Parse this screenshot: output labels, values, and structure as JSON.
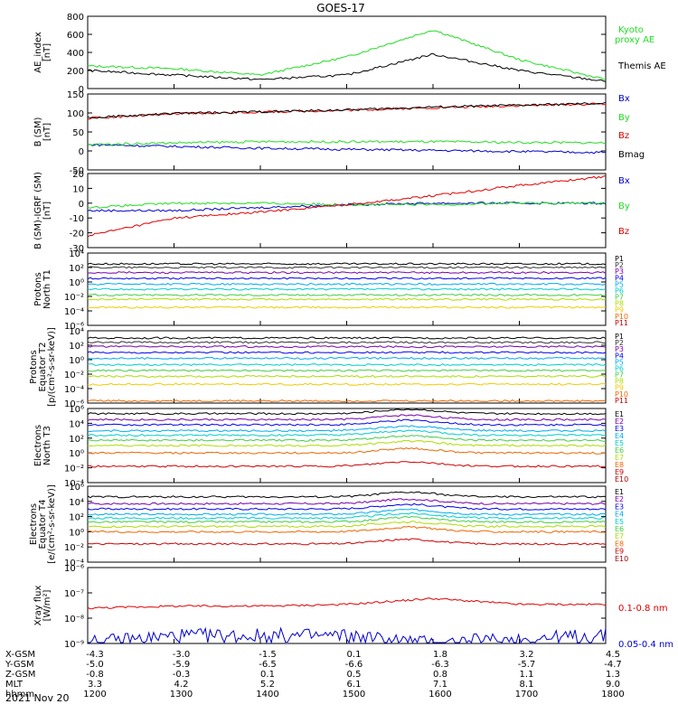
{
  "title": "GOES-17",
  "date_label": "2021 Nov 20",
  "colors": {
    "black": "#000000",
    "green": "#22dd22",
    "blue": "#0000cc",
    "red": "#dd0000",
    "p1": "#000000",
    "p2": "#333333",
    "p3": "#7700aa",
    "p4": "#0000ee",
    "p5": "#00aaee",
    "p6": "#00cccc",
    "p7": "#44cc44",
    "p8": "#aadd00",
    "p9": "#eecc00",
    "p10": "#ee6600",
    "p11": "#cc0000",
    "e9": "#cc0000",
    "e10": "#aa0000"
  },
  "ephemeris": {
    "row_labels": [
      "X-GSM",
      "Y-GSM",
      "Z-GSM",
      "MLT",
      "hhmm"
    ],
    "columns": [
      {
        "x": "-4.3",
        "y": "-5.0",
        "z": "-0.8",
        "mlt": "3.3",
        "hhmm": "1200"
      },
      {
        "x": "-3.0",
        "y": "-5.9",
        "z": "-0.3",
        "mlt": "4.2",
        "hhmm": "1300"
      },
      {
        "x": "-1.5",
        "y": "-6.5",
        "z": "0.1",
        "mlt": "5.2",
        "hhmm": "1400"
      },
      {
        "x": "0.1",
        "y": "-6.6",
        "z": "0.5",
        "mlt": "6.1",
        "hhmm": "1500"
      },
      {
        "x": "1.8",
        "y": "-6.3",
        "z": "0.8",
        "mlt": "7.1",
        "hhmm": "1600"
      },
      {
        "x": "3.2",
        "y": "-5.7",
        "z": "1.1",
        "mlt": "8.1",
        "hhmm": "1700"
      },
      {
        "x": "4.5",
        "y": "-4.7",
        "z": "1.3",
        "mlt": "9.0",
        "hhmm": "1800"
      }
    ]
  },
  "chart_data": [
    {
      "id": "ae",
      "type": "line",
      "ylabel": "AE_index\n[nT]",
      "ylim": [
        0,
        800
      ],
      "yticks": [
        "800",
        "600",
        "400",
        "200",
        "0"
      ],
      "x": [
        "1200",
        "1300",
        "1400",
        "1500",
        "1600",
        "1700",
        "1800"
      ],
      "series": [
        {
          "name": "Kyoto\nproxy AE",
          "color": "green",
          "values": [
            250,
            220,
            150,
            350,
            650,
            320,
            100
          ]
        },
        {
          "name": "Themis AE",
          "color": "black",
          "values": [
            200,
            150,
            100,
            150,
            380,
            200,
            80
          ]
        }
      ]
    },
    {
      "id": "bsm",
      "type": "line",
      "ylabel": "B (SM)\n[nT]",
      "ylim": [
        -60,
        150
      ],
      "yticks": [
        "150",
        "100",
        "50",
        "0",
        "-50"
      ],
      "x": [
        "1200",
        "1300",
        "1400",
        "1500",
        "1600",
        "1700",
        "1800"
      ],
      "series": [
        {
          "name": "Bx",
          "color": "blue",
          "values": [
            10,
            5,
            0,
            -3,
            -6,
            -9,
            -12
          ]
        },
        {
          "name": "By",
          "color": "green",
          "values": [
            10,
            15,
            18,
            18,
            18,
            16,
            15
          ]
        },
        {
          "name": "Bz",
          "color": "red",
          "values": [
            83,
            95,
            100,
            105,
            112,
            118,
            123
          ]
        },
        {
          "name": "Bmag",
          "color": "black",
          "values": [
            84,
            96,
            101,
            106,
            114,
            119,
            124
          ]
        }
      ]
    },
    {
      "id": "bigrf",
      "type": "line",
      "ylabel": "B (SM)-IGRF (SM)\n[nT]",
      "ylim": [
        -30,
        20
      ],
      "yticks": [
        "20",
        "10",
        "0",
        "-10",
        "-20",
        "-30"
      ],
      "x": [
        "1200",
        "1300",
        "1400",
        "1500",
        "1600",
        "1700",
        "1800"
      ],
      "series": [
        {
          "name": "Bx",
          "color": "blue",
          "values": [
            -5,
            -5,
            -3,
            -1,
            0,
            0,
            0
          ]
        },
        {
          "name": "By",
          "color": "green",
          "values": [
            -3,
            0,
            0,
            -1,
            -1,
            0,
            0
          ]
        },
        {
          "name": "Bz",
          "color": "red",
          "values": [
            -22,
            -10,
            -6,
            -1,
            5,
            12,
            18
          ]
        }
      ]
    },
    {
      "id": "pn",
      "type": "line",
      "scale": "log",
      "ylabel": "Protons\nNorth T1",
      "yticks": [
        "10⁴",
        "10²",
        "10⁰",
        "10⁻²",
        "10⁻⁴",
        "10⁻⁶"
      ],
      "x": [
        "1200",
        "1300",
        "1400",
        "1500",
        "1600",
        "1700",
        "1800"
      ],
      "series": [
        {
          "name": "P1",
          "color": "p1",
          "level": 2.5
        },
        {
          "name": "P2",
          "color": "p2",
          "level": 2.0
        },
        {
          "name": "P3",
          "color": "p3",
          "level": 1.3
        },
        {
          "name": "P4",
          "color": "p4",
          "level": 0.5
        },
        {
          "name": "P5",
          "color": "p5",
          "level": -0.3
        },
        {
          "name": "P6",
          "color": "p6",
          "level": -1.0
        },
        {
          "name": "P7",
          "color": "p7",
          "level": -1.8
        },
        {
          "name": "P8",
          "color": "p8",
          "level": -2.4
        },
        {
          "name": "P9",
          "color": "p9",
          "level": -3.5
        },
        {
          "name": "P10",
          "color": "p10"
        },
        {
          "name": "P11",
          "color": "p11"
        }
      ]
    },
    {
      "id": "pe",
      "type": "line",
      "scale": "log",
      "ylabel": "Protons\nEquator T2\n[p/(cm²-s-sr-keV)]",
      "yticks": [
        "10⁴",
        "10²",
        "10⁰",
        "10⁻²",
        "10⁻⁴",
        "10⁻⁶"
      ],
      "x": [
        "1200",
        "1300",
        "1400",
        "1500",
        "1600",
        "1700",
        "1800"
      ],
      "series": [
        {
          "name": "P1",
          "color": "p1",
          "level": 3.0
        },
        {
          "name": "P2",
          "color": "p2",
          "level": 2.4
        },
        {
          "name": "P3",
          "color": "p3",
          "level": 1.8
        },
        {
          "name": "P4",
          "color": "p4",
          "level": 1.0
        },
        {
          "name": "P5",
          "color": "p5",
          "level": 0.2
        },
        {
          "name": "P6",
          "color": "p6",
          "level": -0.7
        },
        {
          "name": "P7",
          "color": "p7",
          "level": -1.5
        },
        {
          "name": "P8",
          "color": "p8",
          "level": -2.3
        },
        {
          "name": "P9",
          "color": "p9",
          "level": -3.4
        },
        {
          "name": "P10",
          "color": "p10",
          "level": -5.7
        },
        {
          "name": "P11",
          "color": "p11"
        }
      ]
    },
    {
      "id": "en",
      "type": "line",
      "scale": "log",
      "ylabel": "Electrons\nNorth T3",
      "yticks": [
        "10⁶",
        "10⁴",
        "10²",
        "10⁰",
        "10⁻²",
        "10⁻⁴"
      ],
      "x": [
        "1200",
        "1300",
        "1400",
        "1500",
        "1600",
        "1700",
        "1800"
      ],
      "series": [
        {
          "name": "E1",
          "color": "p1",
          "level": 5.3
        },
        {
          "name": "E2",
          "color": "p3",
          "level": 4.5
        },
        {
          "name": "E3",
          "color": "p4",
          "level": 3.8
        },
        {
          "name": "E4",
          "color": "p5",
          "level": 3.0
        },
        {
          "name": "E5",
          "color": "p6",
          "level": 2.4
        },
        {
          "name": "E6",
          "color": "p7",
          "level": 1.7
        },
        {
          "name": "E7",
          "color": "p8",
          "level": 1.0
        },
        {
          "name": "E8",
          "color": "p10",
          "level": 0.0
        },
        {
          "name": "E9",
          "color": "e9",
          "level": -1.8
        },
        {
          "name": "E10",
          "color": "e10"
        }
      ]
    },
    {
      "id": "ee",
      "type": "line",
      "scale": "log",
      "ylabel": "Electrons\nEquator T4\n[e/(cm²-s-sr-keV)]",
      "yticks": [
        "10⁶",
        "10⁴",
        "10²",
        "10⁰",
        "10⁻²",
        "10⁻⁴"
      ],
      "x": [
        "1200",
        "1300",
        "1400",
        "1500",
        "1600",
        "1700",
        "1800"
      ],
      "series": [
        {
          "name": "E1",
          "color": "p1",
          "level": 4.6
        },
        {
          "name": "E2",
          "color": "p3",
          "level": 3.7
        },
        {
          "name": "E3",
          "color": "p4",
          "level": 3.0
        },
        {
          "name": "E4",
          "color": "p5",
          "level": 2.3
        },
        {
          "name": "E5",
          "color": "p6",
          "level": 1.8
        },
        {
          "name": "E6",
          "color": "p7",
          "level": 1.3
        },
        {
          "name": "E7",
          "color": "p8",
          "level": 0.7
        },
        {
          "name": "E8",
          "color": "p10",
          "level": 0.0
        },
        {
          "name": "E9",
          "color": "e9",
          "level": -1.6
        },
        {
          "name": "E10",
          "color": "e10"
        }
      ]
    },
    {
      "id": "xray",
      "type": "line",
      "scale": "log",
      "ylabel": "Xray flux\n[W/m²]",
      "ylim": [
        1e-09,
        1e-06
      ],
      "yticks": [
        "10⁻⁶",
        "10⁻⁷",
        "10⁻⁸",
        "10⁻⁹"
      ],
      "x": [
        "1200",
        "1300",
        "1400",
        "1500",
        "1600",
        "1700",
        "1800"
      ],
      "series": [
        {
          "name": "0.1-0.8 nm",
          "color": "red",
          "values": [
            2.5e-08,
            3e-08,
            3e-08,
            3.5e-08,
            6e-08,
            3.5e-08,
            3.5e-08
          ]
        },
        {
          "name": "0.05-0.4 nm",
          "color": "blue",
          "values": [
            1e-09,
            2e-09,
            2e-09,
            2e-09,
            1e-09,
            1.5e-09,
            2e-09
          ]
        }
      ]
    }
  ]
}
